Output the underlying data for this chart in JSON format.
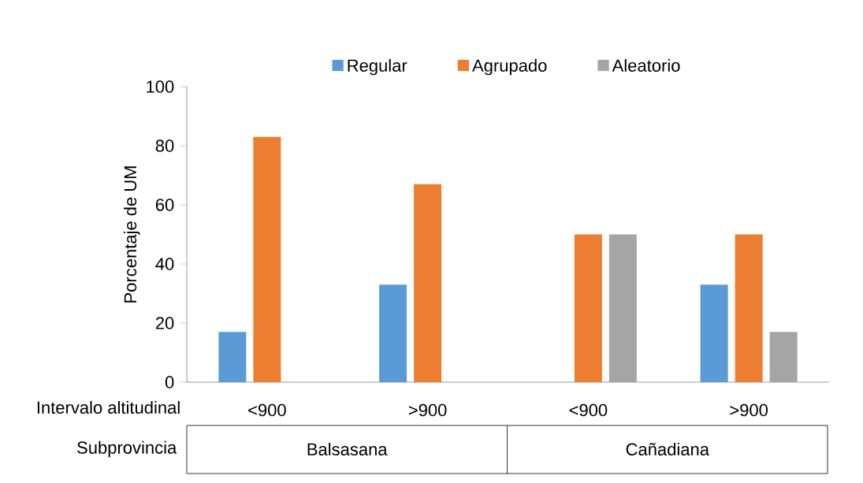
{
  "chart_data": {
    "type": "bar",
    "ylabel": "Porcentaje de UM",
    "categories": [
      "<900",
      ">900",
      "<900",
      ">900"
    ],
    "series": [
      {
        "name": "Regular",
        "color": "#5b9bd5",
        "values": [
          17,
          33,
          null,
          33
        ]
      },
      {
        "name": "Agrupado",
        "color": "#ed7d31",
        "values": [
          83,
          67,
          50,
          50
        ]
      },
      {
        "name": "Aleatorio",
        "color": "#a5a5a5",
        "values": [
          null,
          null,
          50,
          17
        ]
      }
    ],
    "ylim": [
      0,
      100
    ],
    "yticks": [
      0,
      20,
      40,
      60,
      80,
      100
    ],
    "legend": "top",
    "annotations": [
      "Intervalo altitudinal",
      "Subprovincia",
      "Balsasana",
      "Cañadiana"
    ]
  }
}
